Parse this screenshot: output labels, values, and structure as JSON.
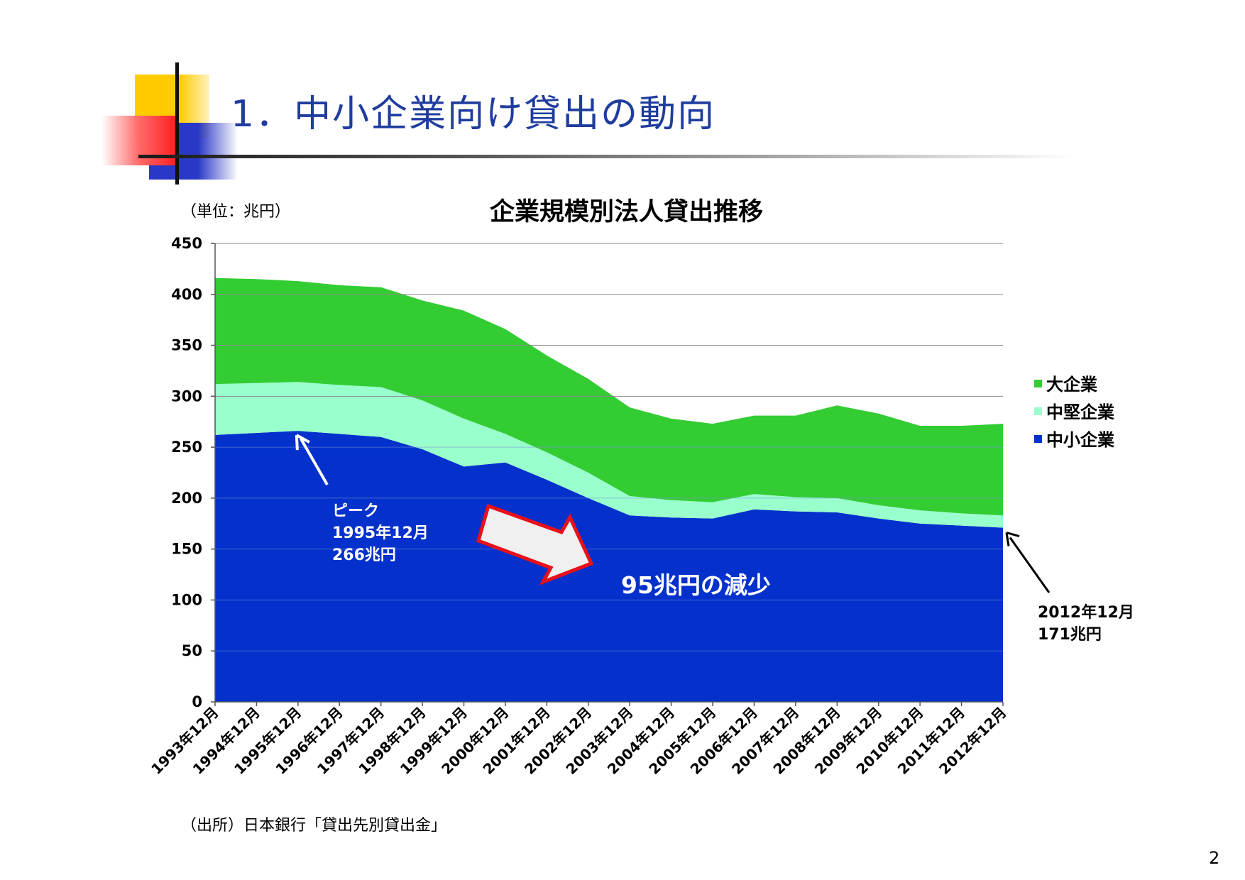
{
  "slide": {
    "title": "1．中小企業向け貸出の動向",
    "unit_label": "（単位：兆円）",
    "source_note": "（出所）日本銀行「貸出先別貸出金」",
    "page_number": "2"
  },
  "chart_data": {
    "type": "area",
    "stacked": true,
    "title": "企業規模別法人貸出推移",
    "categories": [
      "1993年12月",
      "1994年12月",
      "1995年12月",
      "1996年12月",
      "1997年12月",
      "1998年12月",
      "1999年12月",
      "2000年12月",
      "2001年12月",
      "2002年12月",
      "2003年12月",
      "2004年12月",
      "2005年12月",
      "2006年12月",
      "2007年12月",
      "2008年12月",
      "2009年12月",
      "2010年12月",
      "2011年12月",
      "2012年12月"
    ],
    "series": [
      {
        "name": "中小企業",
        "color": "#0431cc",
        "values": [
          262,
          264,
          266,
          263,
          260,
          248,
          231,
          235,
          218,
          200,
          183,
          181,
          180,
          189,
          187,
          186,
          180,
          175,
          173,
          171
        ]
      },
      {
        "name": "中堅企業",
        "color": "#99ffcc",
        "values": [
          50,
          49,
          48,
          48,
          49,
          48,
          47,
          28,
          27,
          25,
          19,
          17,
          16,
          15,
          14,
          14,
          13,
          13,
          12,
          12
        ]
      },
      {
        "name": "大企業",
        "color": "#33cc33",
        "values": [
          104,
          102,
          99,
          98,
          98,
          98,
          106,
          103,
          95,
          92,
          87,
          80,
          77,
          77,
          80,
          91,
          90,
          83,
          86,
          90
        ]
      }
    ],
    "ylim": [
      0,
      450
    ],
    "yticks": [
      "0",
      "50",
      "100",
      "150",
      "200",
      "250",
      "300",
      "350",
      "400",
      "450"
    ],
    "grid": true,
    "legend_position": "right",
    "annotations": {
      "peak": {
        "lines": [
          "ピーク",
          "1995年12月",
          "266兆円"
        ]
      },
      "latest": {
        "lines": [
          "2012年12月",
          "171兆円"
        ]
      },
      "decrease": {
        "text": "95兆円の減少"
      }
    }
  }
}
